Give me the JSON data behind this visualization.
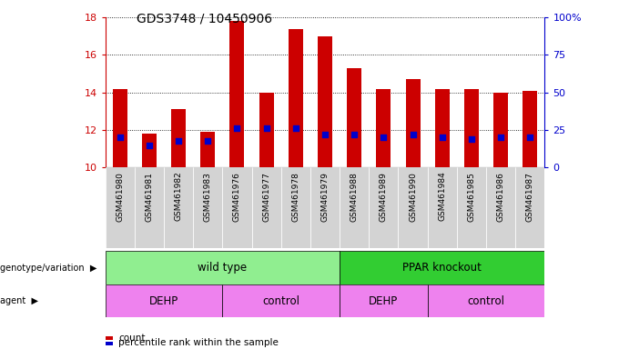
{
  "title": "GDS3748 / 10450906",
  "samples": [
    "GSM461980",
    "GSM461981",
    "GSM461982",
    "GSM461983",
    "GSM461976",
    "GSM461977",
    "GSM461978",
    "GSM461979",
    "GSM461988",
    "GSM461989",
    "GSM461990",
    "GSM461984",
    "GSM461985",
    "GSM461986",
    "GSM461987"
  ],
  "count_values": [
    14.2,
    11.8,
    13.1,
    11.9,
    17.8,
    14.0,
    17.4,
    17.0,
    15.3,
    14.2,
    14.7,
    14.2,
    14.2,
    14.0,
    14.1
  ],
  "percentile_values": [
    20,
    15,
    18,
    18,
    26,
    26,
    26,
    22,
    22,
    20,
    22,
    20,
    19,
    20,
    20
  ],
  "ylim": [
    10,
    18
  ],
  "y2lim": [
    0,
    100
  ],
  "yticks": [
    10,
    12,
    14,
    16,
    18
  ],
  "y2ticks": [
    0,
    25,
    50,
    75,
    100
  ],
  "y2ticklabels": [
    "0",
    "25",
    "50",
    "75",
    "100%"
  ],
  "bar_color": "#cc0000",
  "blue_color": "#0000cc",
  "bar_width": 0.5,
  "groups": {
    "genotype": [
      {
        "label": "wild type",
        "start": 0,
        "end": 8,
        "color": "#90ee90"
      },
      {
        "label": "PPAR knockout",
        "start": 8,
        "end": 15,
        "color": "#32cd32"
      }
    ],
    "agent": [
      {
        "label": "DEHP",
        "start": 0,
        "end": 4,
        "color": "#ee82ee"
      },
      {
        "label": "control",
        "start": 4,
        "end": 8,
        "color": "#ee82ee"
      },
      {
        "label": "DEHP",
        "start": 8,
        "end": 11,
        "color": "#ee82ee"
      },
      {
        "label": "control",
        "start": 11,
        "end": 15,
        "color": "#ee82ee"
      }
    ]
  },
  "legend_items": [
    {
      "label": "count",
      "color": "#cc0000"
    },
    {
      "label": "percentile rank within the sample",
      "color": "#0000cc"
    }
  ],
  "bg_color": "#ffffff",
  "right_axis_color": "#0000cc",
  "left_axis_color": "#cc0000",
  "sample_bg_color": "#d3d3d3"
}
